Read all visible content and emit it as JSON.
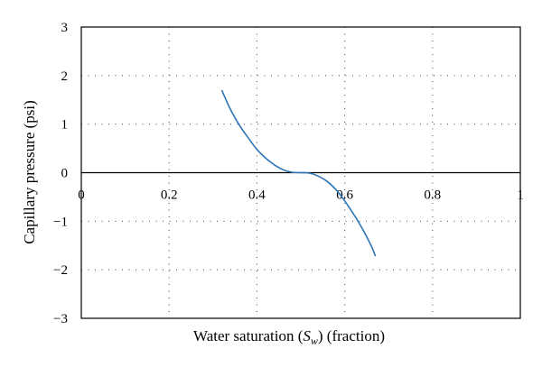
{
  "chart_data": {
    "type": "line",
    "xlabel_prefix": "Water saturation (",
    "xlabel_symbol": "S",
    "xlabel_subscript": "w",
    "xlabel_suffix": ") (fraction)",
    "ylabel": "Capillary pressure (psi)",
    "xlim": [
      0,
      1
    ],
    "ylim": [
      -3,
      3
    ],
    "x_ticks": [
      "0",
      "0.2",
      "0.4",
      "0.6",
      "0.8",
      "1"
    ],
    "y_ticks": [
      "3",
      "2",
      "1",
      "0",
      "−1",
      "−2",
      "−3"
    ],
    "x_tick_values": [
      0,
      0.2,
      0.4,
      0.6,
      0.8,
      1
    ],
    "y_tick_values": [
      3,
      2,
      1,
      0,
      -1,
      -2,
      -3
    ],
    "grid": true,
    "series": [
      {
        "color": "#2e75b6",
        "x": [
          0.32,
          0.34,
          0.36,
          0.38,
          0.4,
          0.42,
          0.44,
          0.46,
          0.48,
          0.5,
          0.52,
          0.54,
          0.56,
          0.58,
          0.6,
          0.62,
          0.64,
          0.66,
          0.67
        ],
        "y": [
          1.7,
          1.3,
          0.98,
          0.72,
          0.48,
          0.3,
          0.16,
          0.06,
          0.01,
          0.0,
          -0.01,
          -0.07,
          -0.18,
          -0.35,
          -0.58,
          -0.85,
          -1.15,
          -1.5,
          -1.72
        ]
      }
    ]
  }
}
